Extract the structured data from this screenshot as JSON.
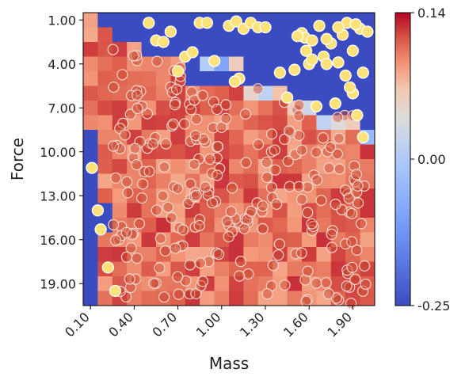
{
  "chart_data": {
    "type": "heatmap",
    "title": "",
    "xlabel": "Mass",
    "ylabel": "Force",
    "xlim": [
      0.05,
      2.05
    ],
    "ylim": [
      0.5,
      20.5
    ],
    "x_ticks": [
      0.1,
      0.4,
      0.7,
      1.0,
      1.3,
      1.6,
      1.9
    ],
    "x_tick_labels": [
      "0.10",
      "0.40",
      "0.70",
      "1.00",
      "1.30",
      "1.60",
      "1.90"
    ],
    "y_ticks": [
      1,
      4,
      7,
      10,
      13,
      16,
      19
    ],
    "y_tick_labels": [
      "1.00",
      "4.00",
      "7.00",
      "10.00",
      "13.00",
      "16.00",
      "19.00"
    ],
    "y_inverted": true,
    "grid": false,
    "colorbar": {
      "min": -0.25,
      "max": 0.14,
      "ticks": [
        0.14,
        0.0,
        -0.25
      ],
      "tick_labels": [
        "0.14",
        "0.00",
        "-0.25"
      ],
      "colormap": "coolwarm"
    },
    "heatmap_grid": {
      "x_centers_start": 0.1,
      "x_step": 0.1,
      "n_cols": 20,
      "y_centers_start": 1.0,
      "y_step": 1.0,
      "n_rows": 20,
      "base_value": 0.085,
      "negative_value": -0.25,
      "negative_boundary_upper": [
        2,
        2,
        3,
        3,
        4,
        4,
        4,
        6,
        6,
        6,
        6,
        6,
        7,
        7,
        7,
        7,
        8,
        8,
        8,
        9
      ],
      "left_negative_max_row": [
        20,
        15,
        0,
        0,
        0,
        0,
        0,
        0,
        0,
        0,
        0,
        0,
        0,
        0,
        0,
        0,
        0,
        0,
        0,
        0
      ],
      "transition_cells": [
        {
          "col": 8,
          "row": 4,
          "value": -0.03
        },
        {
          "col": 9,
          "row": 4,
          "value": -0.12
        },
        {
          "col": 10,
          "row": 4,
          "value": 0.02
        },
        {
          "col": 11,
          "row": 6,
          "value": 0.01
        },
        {
          "col": 12,
          "row": 6,
          "value": -0.02
        },
        {
          "col": 13,
          "row": 6,
          "value": 0.03
        },
        {
          "col": 14,
          "row": 7,
          "value": 0.02
        },
        {
          "col": 15,
          "row": 7,
          "value": -0.01
        },
        {
          "col": 16,
          "row": 8,
          "value": -0.02
        },
        {
          "col": 17,
          "row": 8,
          "value": 0.0
        },
        {
          "col": 18,
          "row": 8,
          "value": 0.02
        },
        {
          "col": 19,
          "row": 9,
          "value": -0.08
        }
      ]
    },
    "scatter_series": [
      {
        "name": "",
        "color": "#fde27a",
        "edge_color": "#ffffff",
        "points": [
          [
            0.11,
            11.1
          ],
          [
            0.15,
            14.0
          ],
          [
            0.17,
            15.3
          ],
          [
            0.22,
            17.9
          ],
          [
            0.27,
            19.5
          ],
          [
            0.5,
            1.2
          ],
          [
            0.55,
            2.4
          ],
          [
            0.6,
            2.5
          ],
          [
            0.65,
            1.8
          ],
          [
            0.7,
            4.5
          ],
          [
            0.75,
            3.5
          ],
          [
            0.8,
            3.2
          ],
          [
            0.85,
            1.2
          ],
          [
            0.9,
            1.2
          ],
          [
            0.95,
            3.8
          ],
          [
            1.05,
            1.4
          ],
          [
            1.1,
            1.1
          ],
          [
            1.15,
            1.6
          ],
          [
            1.2,
            1.2
          ],
          [
            1.25,
            1.5
          ],
          [
            1.3,
            1.5
          ],
          [
            1.12,
            5.0
          ],
          [
            1.09,
            5.2
          ],
          [
            1.4,
            4.6
          ],
          [
            1.5,
            4.4
          ],
          [
            1.45,
            6.3
          ],
          [
            1.55,
            1.9
          ],
          [
            1.57,
            2.2
          ],
          [
            1.58,
            3.1
          ],
          [
            1.6,
            4.0
          ],
          [
            1.62,
            2.4
          ],
          [
            1.67,
            1.4
          ],
          [
            1.7,
            3.5
          ],
          [
            1.72,
            4.0
          ],
          [
            1.75,
            2.6
          ],
          [
            1.8,
            3.9
          ],
          [
            1.83,
            2.0
          ],
          [
            1.86,
            1.2
          ],
          [
            1.9,
            3.1
          ],
          [
            1.95,
            1.6
          ],
          [
            1.97,
            4.6
          ],
          [
            2.0,
            1.8
          ],
          [
            1.85,
            4.8
          ],
          [
            1.9,
            6.0
          ],
          [
            1.93,
            7.5
          ],
          [
            1.88,
            5.6
          ],
          [
            1.78,
            6.7
          ],
          [
            1.65,
            6.9
          ],
          [
            1.72,
            2.3
          ],
          [
            1.97,
            9.0
          ],
          [
            1.52,
            2.1
          ],
          [
            1.8,
            1.5
          ],
          [
            1.62,
            3.7
          ],
          [
            1.92,
            1.3
          ]
        ]
      }
    ]
  }
}
